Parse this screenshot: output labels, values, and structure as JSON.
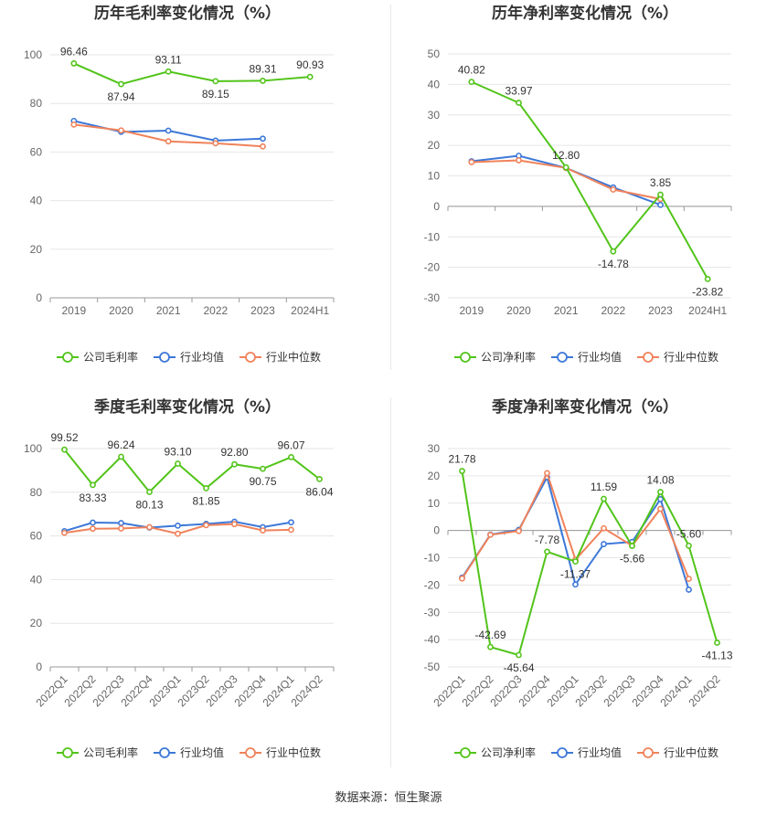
{
  "colors": {
    "company": "#52c41a",
    "avg": "#3c78d8",
    "median": "#f0825a",
    "grid": "#e6e6e6",
    "axis": "#999999"
  },
  "source_text": "数据来源：恒生聚源",
  "chart_data": [
    {
      "id": "annual-gross",
      "type": "line",
      "title": "历年毛利率变化情况（%）",
      "categories": [
        "2019",
        "2020",
        "2021",
        "2022",
        "2023",
        "2024H1"
      ],
      "ylim": [
        0,
        100
      ],
      "yticks": [
        0,
        20,
        40,
        60,
        80,
        100
      ],
      "rotate_x": false,
      "series": [
        {
          "name": "公司毛利率",
          "key": "company",
          "values": [
            96.46,
            87.94,
            93.11,
            89.15,
            89.31,
            90.93
          ],
          "labels": [
            "96.46",
            "87.94",
            "93.11",
            "89.15",
            "89.31",
            "90.93"
          ]
        },
        {
          "name": "行业均值",
          "key": "avg",
          "values": [
            72.8,
            68.3,
            68.8,
            64.7,
            65.5,
            null
          ]
        },
        {
          "name": "行业中位数",
          "key": "median",
          "values": [
            71.3,
            68.9,
            64.4,
            63.6,
            62.3,
            null
          ]
        }
      ]
    },
    {
      "id": "annual-net",
      "type": "line",
      "title": "历年净利率变化情况（%）",
      "categories": [
        "2019",
        "2020",
        "2021",
        "2022",
        "2023",
        "2024H1"
      ],
      "ylim": [
        -30,
        50
      ],
      "yticks": [
        -30,
        -20,
        -10,
        0,
        10,
        20,
        30,
        40,
        50
      ],
      "rotate_x": false,
      "series": [
        {
          "name": "公司净利率",
          "key": "company",
          "values": [
            40.82,
            33.97,
            12.8,
            -14.78,
            3.85,
            -23.82
          ],
          "labels": [
            "40.82",
            "33.97",
            "12.80",
            "-14.78",
            "3.85",
            "-23.82"
          ]
        },
        {
          "name": "行业均值",
          "key": "avg",
          "values": [
            14.8,
            16.6,
            12.6,
            6.2,
            0.5,
            null
          ]
        },
        {
          "name": "行业中位数",
          "key": "median",
          "values": [
            14.5,
            15.1,
            12.6,
            5.5,
            2.4,
            null
          ]
        }
      ]
    },
    {
      "id": "quarterly-gross",
      "type": "line",
      "title": "季度毛利率变化情况（%）",
      "categories": [
        "2022Q1",
        "2022Q2",
        "2022Q3",
        "2022Q4",
        "2023Q1",
        "2023Q2",
        "2023Q3",
        "2023Q4",
        "2024Q1",
        "2024Q2"
      ],
      "ylim": [
        0,
        100
      ],
      "yticks": [
        0,
        20,
        40,
        60,
        80,
        100
      ],
      "rotate_x": true,
      "series": [
        {
          "name": "公司毛利率",
          "key": "company",
          "values": [
            99.52,
            83.33,
            96.24,
            80.13,
            93.1,
            81.85,
            92.8,
            90.75,
            96.07,
            86.04
          ],
          "labels": [
            "99.52",
            "83.33",
            "96.24",
            "80.13",
            "93.10",
            "81.85",
            "92.80",
            "90.75",
            "96.07",
            "86.04"
          ]
        },
        {
          "name": "行业均值",
          "key": "avg",
          "values": [
            62.2,
            66.1,
            65.9,
            63.8,
            64.7,
            65.5,
            66.5,
            64.0,
            66.2,
            null
          ]
        },
        {
          "name": "行业中位数",
          "key": "median",
          "values": [
            61.4,
            63.3,
            63.4,
            64.0,
            61.0,
            64.9,
            65.4,
            62.5,
            62.8,
            null
          ]
        }
      ]
    },
    {
      "id": "quarterly-net",
      "type": "line",
      "title": "季度净利率变化情况（%）",
      "categories": [
        "2022Q1",
        "2022Q2",
        "2022Q3",
        "2022Q4",
        "2023Q1",
        "2023Q2",
        "2023Q3",
        "2023Q4",
        "2024Q1",
        "2024Q2"
      ],
      "ylim": [
        -50,
        30
      ],
      "yticks": [
        -50,
        -40,
        -30,
        -20,
        -10,
        0,
        10,
        20,
        30
      ],
      "rotate_x": true,
      "series": [
        {
          "name": "公司净利率",
          "key": "company",
          "values": [
            21.78,
            -42.69,
            -45.64,
            -7.78,
            -11.37,
            11.59,
            -5.66,
            14.08,
            -5.6,
            -41.13
          ],
          "labels": [
            "21.78",
            "-42.69",
            "-45.64",
            "-7.78",
            "-11.37",
            "11.59",
            "-5.66",
            "14.08",
            "-5.60",
            "-41.13"
          ]
        },
        {
          "name": "行业均值",
          "key": "avg",
          "values": [
            -17.3,
            -1.5,
            0.2,
            19.5,
            -19.8,
            -5.0,
            -4.2,
            11.5,
            -21.7,
            null
          ]
        },
        {
          "name": "行业中位数",
          "key": "median",
          "values": [
            -17.6,
            -1.6,
            -0.2,
            21.0,
            -10.7,
            0.8,
            -5.6,
            7.9,
            -17.7,
            null
          ]
        }
      ]
    }
  ]
}
